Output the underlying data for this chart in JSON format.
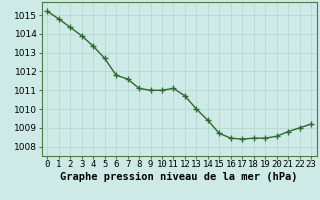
{
  "x": [
    0,
    1,
    2,
    3,
    4,
    5,
    6,
    7,
    8,
    9,
    10,
    11,
    12,
    13,
    14,
    15,
    16,
    17,
    18,
    19,
    20,
    21,
    22,
    23
  ],
  "y": [
    1015.2,
    1014.8,
    1014.35,
    1013.9,
    1013.35,
    1012.7,
    1011.8,
    1011.6,
    1011.1,
    1011.0,
    1011.0,
    1011.1,
    1010.7,
    1010.0,
    1009.4,
    1008.7,
    1008.45,
    1008.4,
    1008.45,
    1008.45,
    1008.55,
    1008.8,
    1009.0,
    1009.2
  ],
  "line_color": "#2d6a2d",
  "marker": "+",
  "marker_size": 4,
  "marker_lw": 1.0,
  "background_color": "#ceeae7",
  "grid_color": "#b8d8d4",
  "ylabel_ticks": [
    1008,
    1009,
    1010,
    1011,
    1012,
    1013,
    1014,
    1015
  ],
  "xlabel": "Graphe pression niveau de la mer (hPa)",
  "xlabel_fontsize": 7.5,
  "ylim": [
    1007.5,
    1015.7
  ],
  "xlim": [
    -0.5,
    23.5
  ],
  "tick_fontsize": 6.5,
  "border_color": "#4a7a4a",
  "linewidth": 1.0
}
